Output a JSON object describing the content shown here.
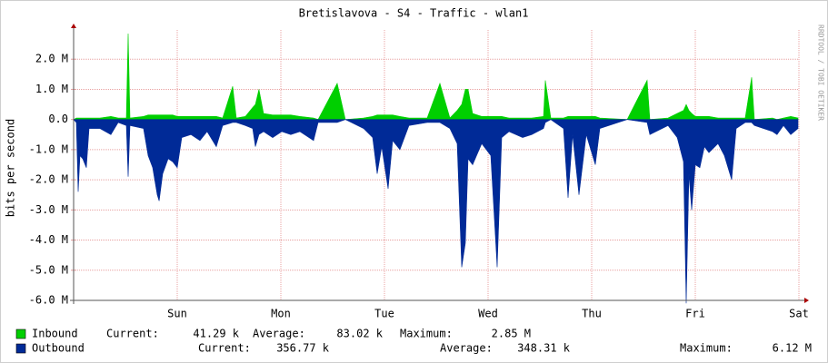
{
  "chart_data": {
    "type": "area",
    "title": "Bretislavova - S4 - Traffic - wlan1",
    "y_label": "bits per second",
    "side_text": "RRDTOOL / TOBI OETIKER",
    "stat_labels": [
      "Current:",
      "Average:",
      "Maximum:"
    ],
    "xlim": [
      0,
      7
    ],
    "ylim": [
      -6.0,
      2.97
    ],
    "grid": true,
    "xticks": [
      {
        "value": 1,
        "label": "Sun"
      },
      {
        "value": 2,
        "label": "Mon"
      },
      {
        "value": 3,
        "label": "Tue"
      },
      {
        "value": 4,
        "label": "Wed"
      },
      {
        "value": 5,
        "label": "Thu"
      },
      {
        "value": 6,
        "label": "Fri"
      },
      {
        "value": 7,
        "label": "Sat"
      }
    ],
    "yticks": [
      {
        "value": 2,
        "label": "2.0 M"
      },
      {
        "value": 1,
        "label": "1.0 M"
      },
      {
        "value": 0,
        "label": "0.0"
      },
      {
        "value": -1,
        "label": "-1.0 M"
      },
      {
        "value": -2,
        "label": "-2.0 M"
      },
      {
        "value": -3,
        "label": "-3.0 M"
      },
      {
        "value": -4,
        "label": "-4.0 M"
      },
      {
        "value": -5,
        "label": "-5.0 M"
      },
      {
        "value": -6,
        "label": "-6.0 M"
      }
    ],
    "x": [
      0,
      0.026,
      0.044,
      0.061,
      0.088,
      0.123,
      0.149,
      0.254,
      0.36,
      0.43,
      0.509,
      0.526,
      0.544,
      0.675,
      0.719,
      0.763,
      0.807,
      0.825,
      0.86,
      0.912,
      0.956,
      1,
      1.044,
      1.132,
      1.219,
      1.289,
      1.377,
      1.439,
      1.535,
      1.57,
      1.658,
      1.728,
      1.754,
      1.789,
      1.833,
      1.921,
      2.009,
      2.096,
      2.184,
      2.316,
      2.36,
      2.544,
      2.623,
      2.798,
      2.886,
      2.93,
      2.974,
      3.035,
      3.079,
      3.149,
      3.237,
      3.412,
      3.535,
      3.632,
      3.702,
      3.746,
      3.781,
      3.807,
      3.851,
      3.939,
      4.026,
      4.088,
      4.132,
      4.202,
      4.333,
      4.421,
      4.535,
      4.553,
      4.605,
      4.728,
      4.772,
      4.816,
      4.877,
      4.947,
      5.035,
      5.079,
      5.342,
      5.535,
      5.561,
      5.737,
      5.825,
      5.886,
      5.912,
      5.939,
      5.965,
      6,
      6.044,
      6.088,
      6.132,
      6.219,
      6.281,
      6.351,
      6.395,
      6.482,
      6.544,
      6.57,
      6.746,
      6.789,
      6.851,
      6.921,
      6.991
    ],
    "series": [
      {
        "name": "Inbound",
        "color": "#00cf00",
        "stats": [
          "41.29 k",
          "83.02 k",
          "2.85 M"
        ],
        "values": [
          0,
          0.05,
          0.05,
          0.05,
          0.05,
          0.05,
          0.05,
          0.05,
          0.1,
          0.05,
          0.05,
          2.85,
          0.05,
          0.1,
          0.15,
          0.15,
          0.15,
          0.15,
          0.15,
          0.15,
          0.15,
          0.1,
          0.1,
          0.1,
          0.1,
          0.1,
          0.1,
          0.05,
          1.1,
          0.05,
          0.1,
          0.4,
          0.5,
          1.0,
          0.2,
          0.15,
          0.15,
          0.15,
          0.1,
          0.05,
          0,
          1.2,
          0,
          0.05,
          0.1,
          0.15,
          0.15,
          0.15,
          0.15,
          0.1,
          0.05,
          0.05,
          1.2,
          0.05,
          0.3,
          0.5,
          1.0,
          1.0,
          0.2,
          0.1,
          0.1,
          0.1,
          0.1,
          0.05,
          0.05,
          0.05,
          0.1,
          1.3,
          0.05,
          0.05,
          0.1,
          0.1,
          0.1,
          0.1,
          0.1,
          0.05,
          0,
          1.3,
          0,
          0.05,
          0.2,
          0.3,
          0.5,
          0.3,
          0.2,
          0.1,
          0.1,
          0.1,
          0.1,
          0.05,
          0.05,
          0.05,
          0.05,
          0.05,
          1.4,
          0,
          0.05,
          0,
          0.05,
          0.1,
          0.05
        ]
      },
      {
        "name": "Outbound",
        "color": "#002a97",
        "stats": [
          "356.77 k",
          "348.31 k",
          "6.12 M"
        ],
        "values": [
          0,
          -0.1,
          -2.4,
          -1.2,
          -1.3,
          -1.6,
          -0.3,
          -0.3,
          -0.5,
          -0.1,
          -0.2,
          -1.9,
          -0.2,
          -0.3,
          -1.2,
          -1.6,
          -2.5,
          -2.7,
          -1.8,
          -1.3,
          -1.4,
          -1.6,
          -0.6,
          -0.5,
          -0.7,
          -0.4,
          -0.9,
          -0.2,
          -0.1,
          -0.1,
          -0.2,
          -0.3,
          -0.9,
          -0.5,
          -0.4,
          -0.6,
          -0.4,
          -0.5,
          -0.4,
          -0.7,
          -0.1,
          -0.1,
          0,
          -0.3,
          -0.6,
          -1.8,
          -0.9,
          -2.3,
          -0.7,
          -1.0,
          -0.2,
          -0.1,
          -0.1,
          -0.3,
          -0.8,
          -4.9,
          -4.1,
          -1.3,
          -1.5,
          -0.8,
          -1.2,
          -4.9,
          -0.6,
          -0.4,
          -0.6,
          -0.5,
          -0.3,
          -0.1,
          0,
          -0.3,
          -2.6,
          -0.5,
          -2.5,
          -0.5,
          -1.5,
          -0.3,
          0,
          -0.1,
          -0.5,
          -0.2,
          -0.6,
          -1.4,
          -6.1,
          -1.8,
          -3.0,
          -1.5,
          -1.6,
          -0.9,
          -1.1,
          -0.8,
          -1.2,
          -2.0,
          -0.3,
          -0.1,
          -0.1,
          -0.2,
          -0.4,
          -0.5,
          -0.2,
          -0.5,
          -0.3
        ]
      }
    ]
  }
}
